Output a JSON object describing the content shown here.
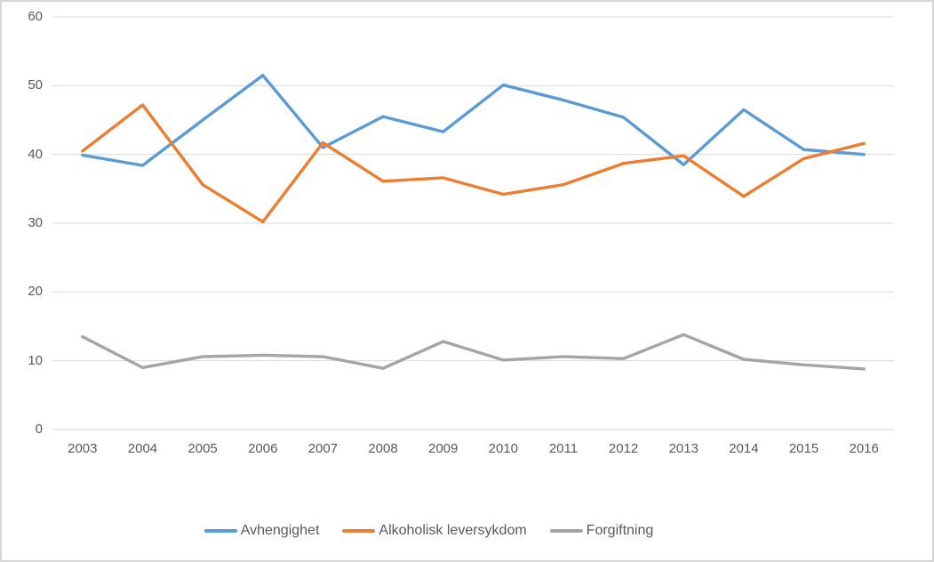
{
  "chart_data": {
    "type": "line",
    "title": "",
    "xlabel": "",
    "ylabel": "",
    "categories": [
      "2003",
      "2004",
      "2005",
      "2006",
      "2007",
      "2008",
      "2009",
      "2010",
      "2011",
      "2012",
      "2013",
      "2014",
      "2015",
      "2016"
    ],
    "series": [
      {
        "name": "Avhengighet",
        "color": "#5B9BD5",
        "values": [
          39.9,
          38.4,
          45.0,
          51.5,
          41.0,
          45.5,
          43.3,
          50.1,
          47.9,
          45.4,
          38.5,
          46.5,
          40.7,
          40.0
        ]
      },
      {
        "name": "Alkoholisk leversykdom",
        "color": "#ED7D31",
        "values": [
          40.5,
          47.2,
          35.6,
          30.2,
          41.7,
          36.1,
          36.6,
          34.2,
          35.6,
          38.7,
          39.8,
          33.9,
          39.4,
          41.6
        ]
      },
      {
        "name": "Forgiftning",
        "color": "#A5A5A5",
        "values": [
          13.5,
          9.0,
          10.6,
          10.8,
          10.6,
          8.9,
          12.8,
          10.1,
          10.6,
          10.3,
          13.8,
          10.2,
          9.4,
          8.8
        ]
      }
    ],
    "ylim": [
      0,
      60
    ],
    "yticks": [
      0,
      10,
      20,
      30,
      40,
      50,
      60
    ],
    "grid": true,
    "legend_position": "bottom"
  },
  "colors": {
    "gridline": "#D9D9D9",
    "axis_text": "#595959",
    "frame_border": "#D6D6D6",
    "background": "#FFFFFF"
  }
}
